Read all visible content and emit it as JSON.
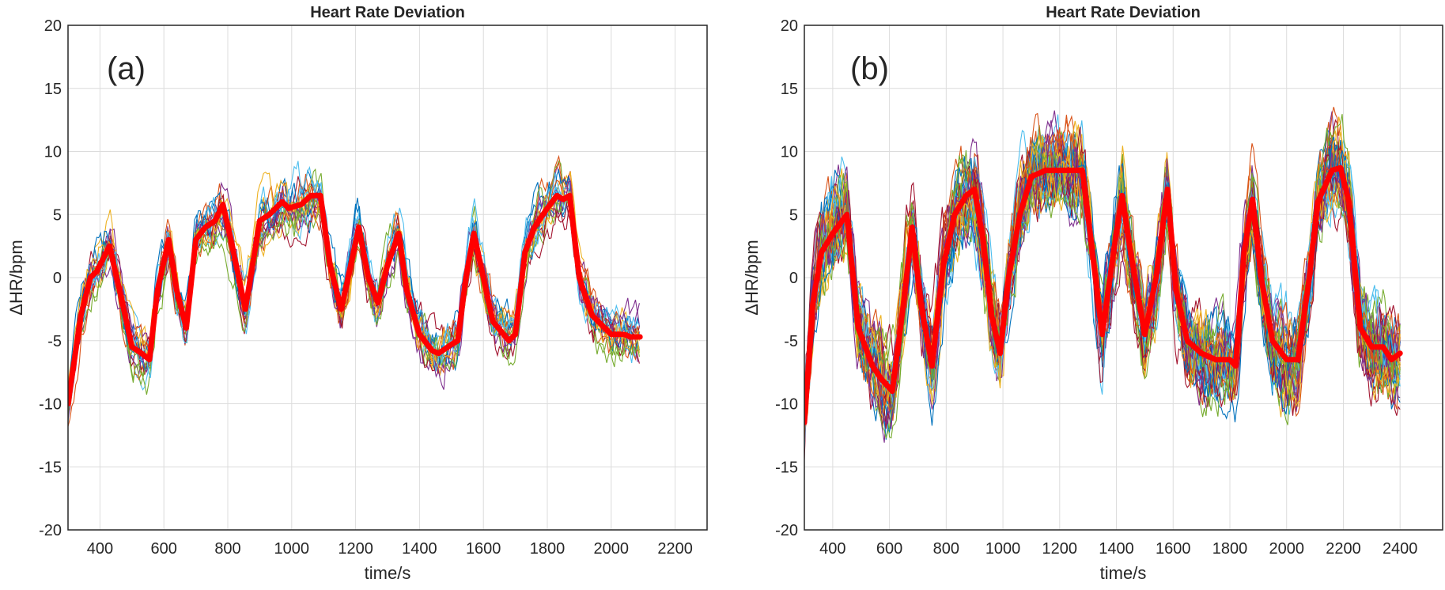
{
  "chart_data": [
    {
      "type": "line",
      "panel_label": "(a)",
      "title": "Heart Rate Deviation",
      "xlabel": "time/s",
      "ylabel": "ΔHR/bpm",
      "xlim": [
        300,
        2300
      ],
      "ylim": [
        -20,
        20
      ],
      "xticks": [
        400,
        600,
        800,
        1000,
        1200,
        1400,
        1600,
        1800,
        2000,
        2200
      ],
      "yticks": [
        -20,
        -15,
        -10,
        -5,
        0,
        5,
        10,
        15,
        20
      ],
      "grid": true,
      "individual_trace_colors": [
        "#0072BD",
        "#D95319",
        "#EDB120",
        "#7E2F8E",
        "#77AC30",
        "#4DBEEE",
        "#A2142F"
      ],
      "mean_color": "#FF0000",
      "mean": {
        "x": [
          300,
          340,
          370,
          390,
          430,
          470,
          500,
          530,
          555,
          580,
          615,
          640,
          670,
          700,
          730,
          760,
          785,
          810,
          855,
          900,
          930,
          970,
          990,
          1030,
          1060,
          1090,
          1120,
          1155,
          1185,
          1210,
          1240,
          1270,
          1300,
          1335,
          1360,
          1400,
          1440,
          1460,
          1500,
          1520,
          1545,
          1570,
          1600,
          1630,
          1680,
          1700,
          1730,
          1760,
          1800,
          1830,
          1850,
          1870,
          1900,
          1940,
          1980,
          2000,
          2040,
          2060,
          2090
        ],
        "y": [
          -10,
          -3,
          0,
          0.5,
          2.5,
          -2,
          -5.5,
          -6,
          -6.5,
          -1,
          3,
          -1,
          -4,
          3,
          4,
          4.5,
          5.8,
          3,
          -2.5,
          4.5,
          5,
          6,
          5.5,
          5.8,
          6.5,
          6.5,
          1,
          -2.5,
          1,
          4,
          0,
          -2,
          1,
          3.5,
          -1,
          -4.5,
          -5.8,
          -6,
          -5.3,
          -5,
          0,
          3.5,
          0,
          -3.5,
          -5,
          -4.5,
          2,
          4,
          5.5,
          6.5,
          6.2,
          6.5,
          0,
          -3,
          -4,
          -4.5,
          -4.5,
          -4.7,
          -4.7
        ]
      }
    },
    {
      "type": "line",
      "panel_label": "(b)",
      "title": "Heart Rate Deviation",
      "xlabel": "time/s",
      "ylabel": "ΔHR/bpm",
      "xlim": [
        300,
        2550
      ],
      "ylim": [
        -20,
        20
      ],
      "xticks": [
        400,
        600,
        800,
        1000,
        1200,
        1400,
        1600,
        1800,
        2000,
        2200,
        2400
      ],
      "yticks": [
        -20,
        -15,
        -10,
        -5,
        0,
        5,
        10,
        15,
        20
      ],
      "grid": true,
      "individual_trace_colors": [
        "#0072BD",
        "#D95319",
        "#EDB120",
        "#7E2F8E",
        "#77AC30",
        "#4DBEEE",
        "#A2142F"
      ],
      "mean_color": "#FF0000",
      "mean": {
        "x": [
          300,
          330,
          360,
          400,
          450,
          490,
          540,
          570,
          610,
          650,
          680,
          710,
          750,
          790,
          830,
          870,
          900,
          930,
          960,
          990,
          1020,
          1060,
          1100,
          1150,
          1200,
          1250,
          1280,
          1310,
          1350,
          1390,
          1420,
          1450,
          1500,
          1540,
          1580,
          1610,
          1650,
          1700,
          1750,
          1800,
          1820,
          1850,
          1880,
          1910,
          1950,
          2000,
          2040,
          2080,
          2110,
          2160,
          2190,
          2220,
          2260,
          2300,
          2340,
          2370,
          2400
        ],
        "y": [
          -11.5,
          -2,
          2,
          3.5,
          5,
          -4,
          -7,
          -8,
          -9,
          -2,
          4,
          -2,
          -7,
          1,
          5,
          6.5,
          7,
          3,
          -3,
          -6,
          0,
          5,
          8,
          8.5,
          8.5,
          8.5,
          8.5,
          3,
          -4.5,
          2,
          6.5,
          2,
          -4.5,
          0,
          7,
          -1,
          -5,
          -6,
          -6.5,
          -6.5,
          -7,
          2,
          6.2,
          0,
          -5,
          -6.5,
          -6.5,
          0,
          6,
          8.5,
          8.7,
          6,
          -4,
          -5.5,
          -5.5,
          -6.5,
          -6
        ]
      }
    }
  ]
}
